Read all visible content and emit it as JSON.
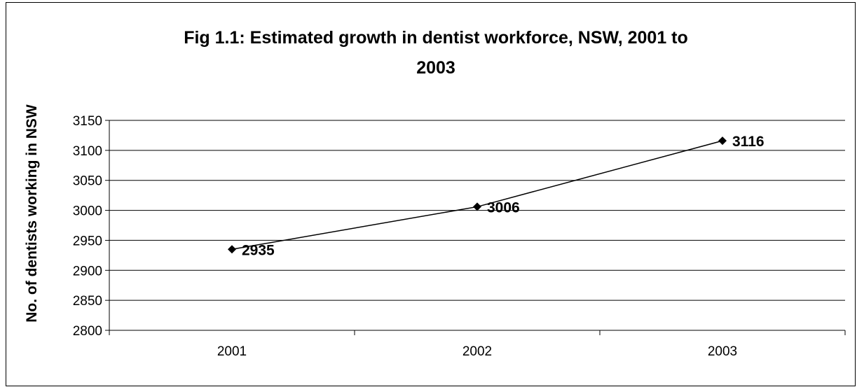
{
  "chart_data": {
    "type": "line",
    "title_lines": [
      "Fig 1.1: Estimated growth in dentist workforce, NSW, 2001 to",
      "2003"
    ],
    "xlabel": "",
    "ylabel": "No. of dentists working in NSW",
    "categories": [
      "2001",
      "2002",
      "2003"
    ],
    "series": [
      {
        "values": [
          2935,
          3006,
          3116
        ],
        "data_labels": [
          "2935",
          "3006",
          "3116"
        ],
        "color": "#000000",
        "marker": "diamond"
      }
    ],
    "ylim": [
      2800,
      3150
    ],
    "yticks": [
      2800,
      2850,
      2900,
      2950,
      3000,
      3050,
      3100,
      3150
    ],
    "ytick_labels": [
      "2800",
      "2850",
      "2900",
      "2950",
      "3000",
      "3050",
      "3100",
      "3150"
    ],
    "grid": true,
    "legend": "none"
  }
}
